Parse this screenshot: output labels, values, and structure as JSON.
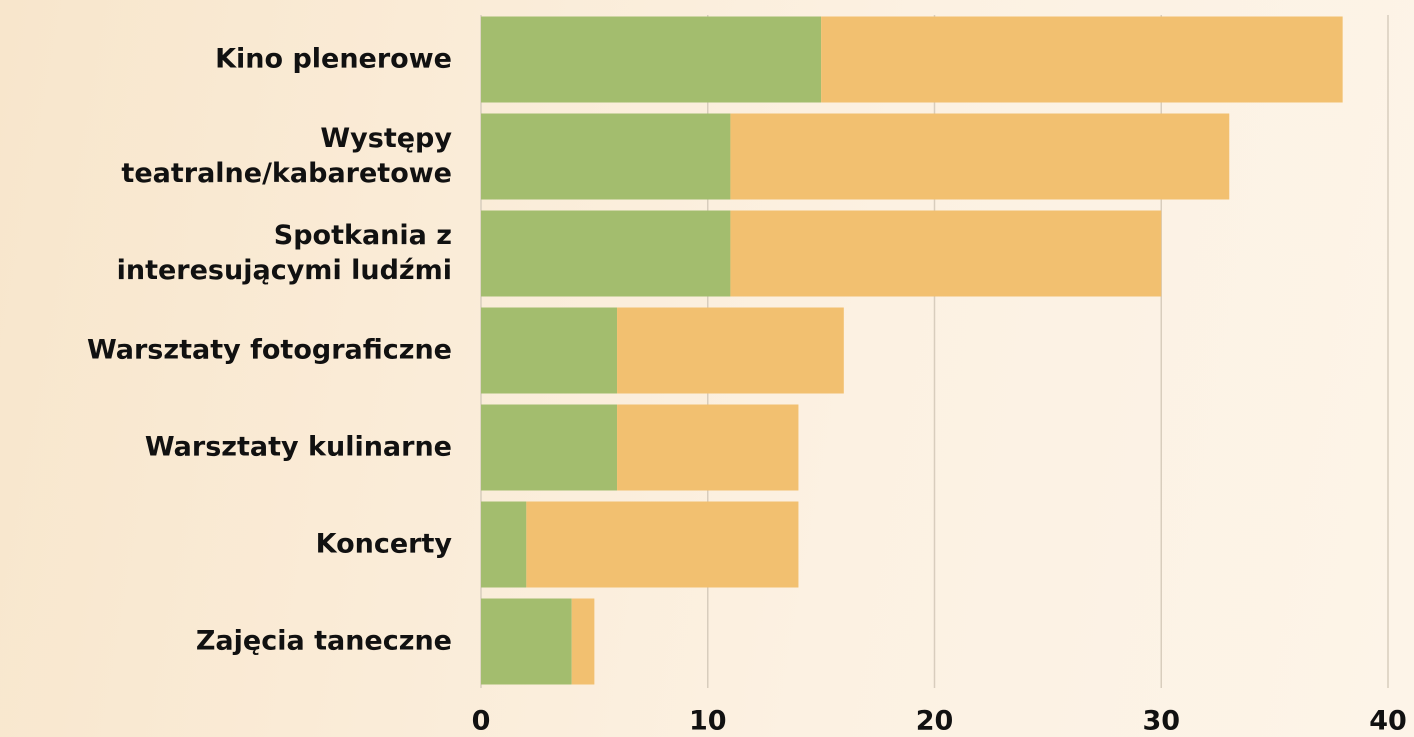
{
  "chart_data": {
    "type": "barh_stacked",
    "categories": [
      "Kino plenerowe",
      "Występy\nteatralne/kabaretowe",
      "Spotkania z\ninteresującymi ludźmi",
      "Warsztaty fotograficzne",
      "Warsztaty kulinarne",
      "Koncerty",
      "Zajęcia taneczne"
    ],
    "series": [
      {
        "color": "#a3bd6e",
        "values": [
          15,
          11,
          11,
          6,
          6,
          2,
          4
        ]
      },
      {
        "color": "#f2c070",
        "values": [
          23,
          22,
          19,
          10,
          8,
          12,
          1
        ]
      }
    ],
    "xlim": [
      0,
      40
    ],
    "xticks": [
      0,
      10,
      20,
      30,
      40
    ],
    "grid": true
  }
}
